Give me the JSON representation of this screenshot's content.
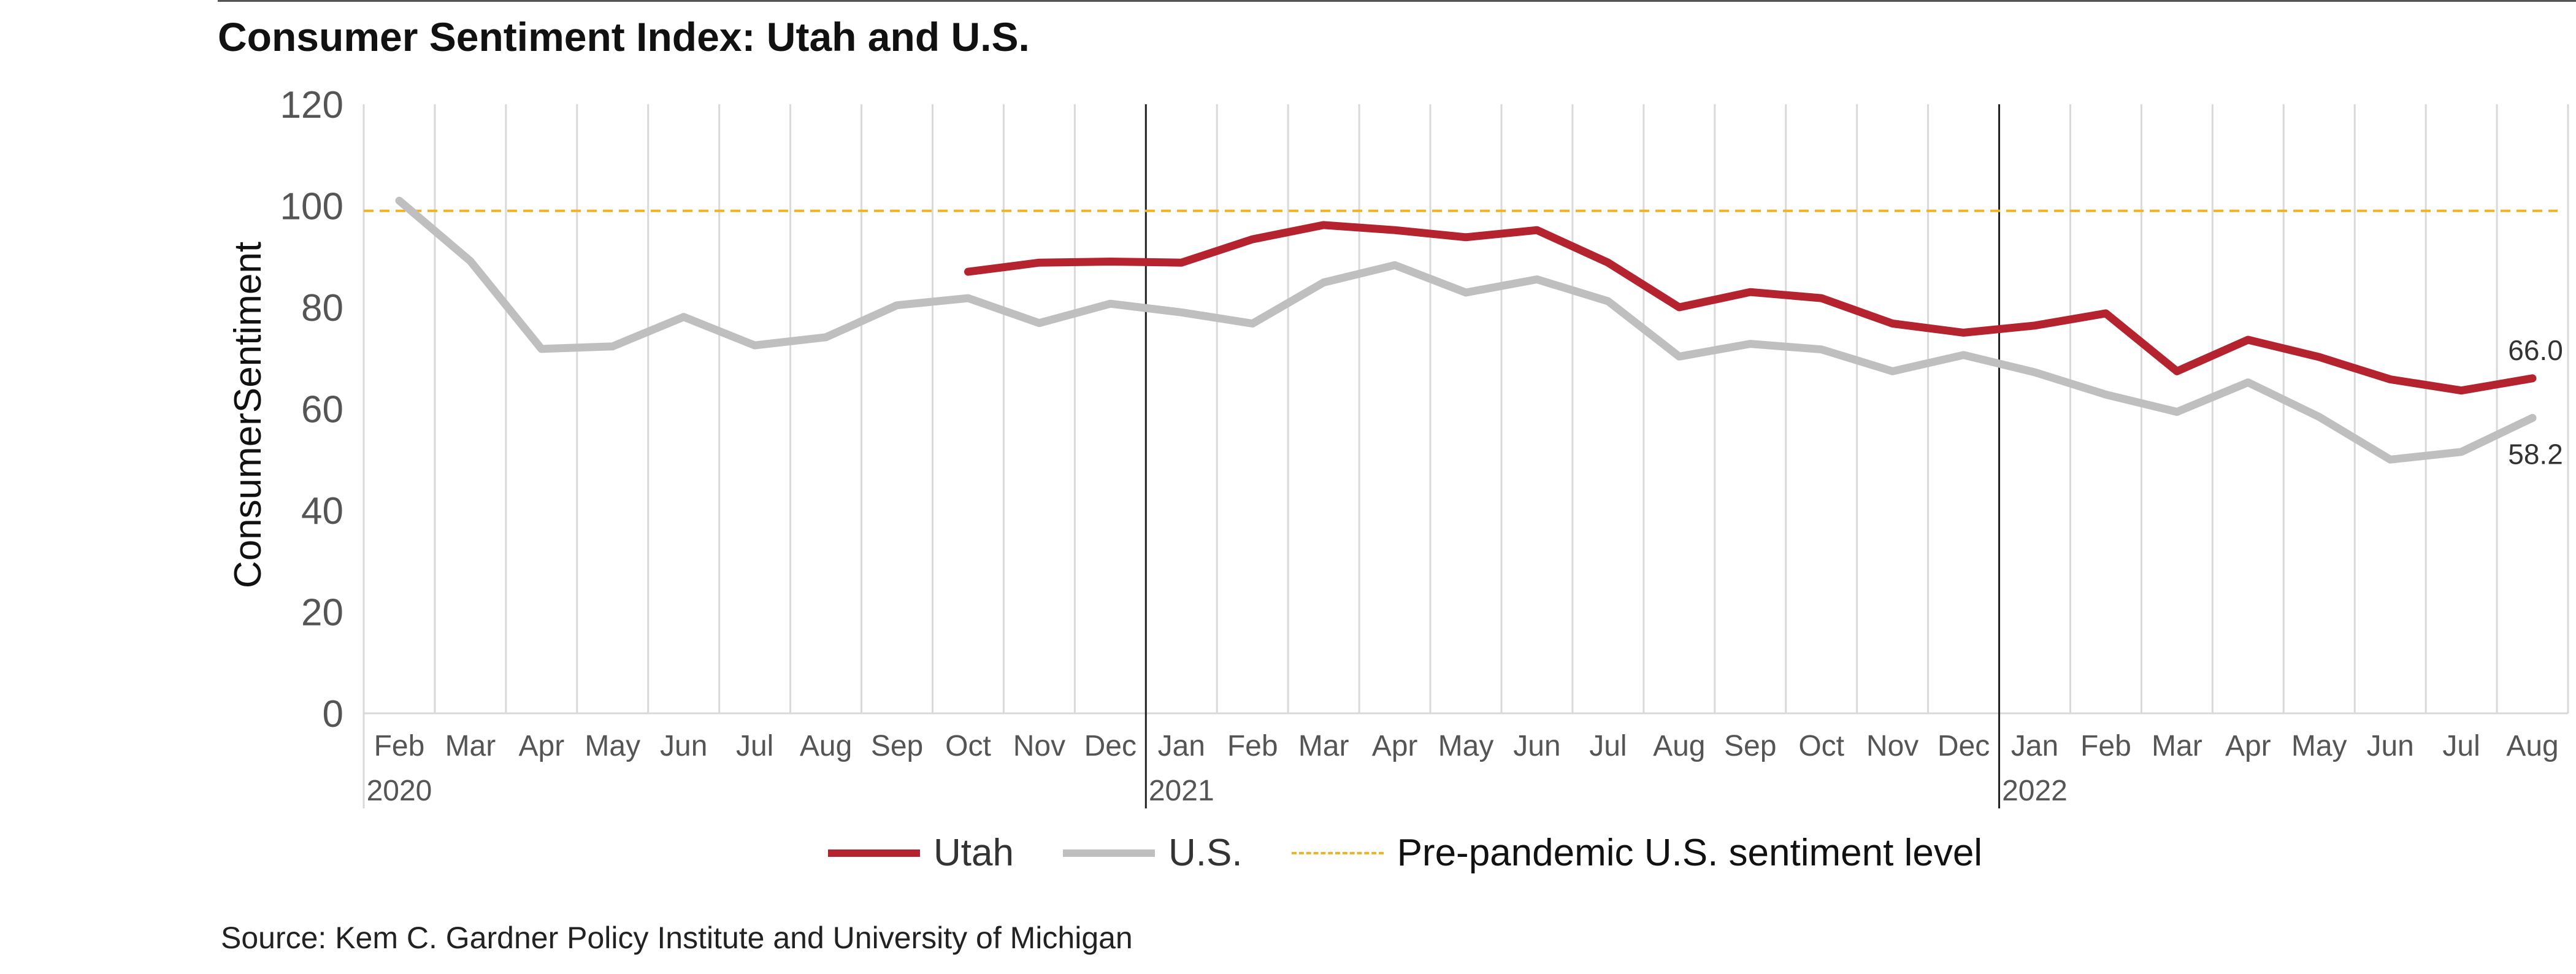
{
  "chart_data": {
    "type": "line",
    "title": "Consumer Sentiment Index: Utah and U.S.",
    "ylabel": "ConsumerSentiment",
    "ylim": [
      0,
      120
    ],
    "yticks": [
      0,
      20,
      40,
      60,
      80,
      100,
      120
    ],
    "categories": [
      "Feb",
      "Mar",
      "Apr",
      "May",
      "Jun",
      "Jul",
      "Aug",
      "Sep",
      "Oct",
      "Nov",
      "Dec",
      "Jan",
      "Feb",
      "Mar",
      "Apr",
      "May",
      "Jun",
      "Jul",
      "Aug",
      "Sep",
      "Oct",
      "Nov",
      "Dec",
      "Jan",
      "Feb",
      "Mar",
      "Apr",
      "May",
      "Jun",
      "Jul",
      "Aug"
    ],
    "year_labels": [
      {
        "index": 0,
        "label": "2020"
      },
      {
        "index": 11,
        "label": "2021"
      },
      {
        "index": 23,
        "label": "2022"
      }
    ],
    "series": [
      {
        "name": "Utah",
        "color": "#b5232f",
        "values": [
          null,
          null,
          null,
          null,
          null,
          null,
          null,
          null,
          87.0,
          88.8,
          89.0,
          88.8,
          93.4,
          96.2,
          95.2,
          93.8,
          95.2,
          88.8,
          80.0,
          83.0,
          81.8,
          76.8,
          75.0,
          76.4,
          78.8,
          67.4,
          73.6,
          70.2,
          65.8,
          63.6,
          66.0
        ],
        "end_label": "66.0"
      },
      {
        "name": "U.S.",
        "color": "#bfbfbf",
        "values": [
          101.0,
          89.1,
          71.8,
          72.3,
          78.1,
          72.5,
          74.1,
          80.4,
          81.8,
          76.9,
          80.7,
          79.0,
          76.8,
          84.9,
          88.3,
          82.9,
          85.5,
          81.2,
          70.3,
          72.8,
          71.7,
          67.4,
          70.6,
          67.2,
          62.8,
          59.4,
          65.2,
          58.4,
          50.0,
          51.5,
          58.2
        ],
        "end_label": "58.2"
      }
    ],
    "reference_line": {
      "name": "Pre-pandemic U.S. sentiment level",
      "value": 99,
      "color": "#f0b323"
    },
    "grid": true,
    "legend_position": "bottom"
  },
  "legend": {
    "utah": "Utah",
    "us": "U.S.",
    "reference": "Pre-pandemic U.S. sentiment level"
  },
  "source": "Source: Kem C. Gardner Policy Institute and University of Michigan"
}
